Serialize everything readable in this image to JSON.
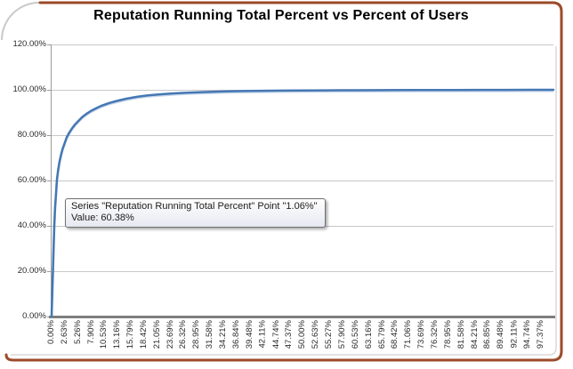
{
  "chart_data": {
    "type": "line",
    "title": "Reputation Running Total Percent vs Percent of Users",
    "series": [
      {
        "name": "Reputation Running Total Percent"
      }
    ],
    "legend": "none",
    "grid": "horizontal",
    "line_color": "#4577b3",
    "xlim": [
      0,
      100
    ],
    "ylim": [
      0,
      120
    ],
    "y_tick_labels": [
      "120.00%",
      "100.00%",
      "80.00%",
      "60.00%",
      "40.00%",
      "20.00%",
      "0.00%"
    ],
    "x_tick_labels": [
      "0.00%",
      "2.63%",
      "5.26%",
      "7.90%",
      "10.53%",
      "13.16%",
      "15.79%",
      "18.42%",
      "21.05%",
      "23.69%",
      "26.32%",
      "28.95%",
      "31.58%",
      "34.21%",
      "36.84%",
      "39.48%",
      "42.11%",
      "44.74%",
      "47.37%",
      "50.00%",
      "52.63%",
      "55.27%",
      "57.90%",
      "60.53%",
      "63.16%",
      "65.79%",
      "68.42%",
      "71.06%",
      "73.69%",
      "76.32%",
      "78.95%",
      "81.58%",
      "84.21%",
      "86.85%",
      "89.48%",
      "92.11%",
      "94.74%",
      "97.37%"
    ],
    "points": [
      [
        0,
        0
      ],
      [
        0.13,
        10
      ],
      [
        0.26,
        20
      ],
      [
        0.4,
        31
      ],
      [
        0.53,
        40
      ],
      [
        0.7,
        48
      ],
      [
        0.9,
        55
      ],
      [
        1.06,
        60.38
      ],
      [
        1.3,
        64.5
      ],
      [
        1.6,
        68.5
      ],
      [
        1.9,
        71.5
      ],
      [
        2.2,
        74
      ],
      [
        2.6,
        76.5
      ],
      [
        3,
        79
      ],
      [
        3.5,
        81
      ],
      [
        4,
        82.8
      ],
      [
        4.6,
        84.5
      ],
      [
        5.3,
        86.2
      ],
      [
        6.1,
        88
      ],
      [
        7,
        89.5
      ],
      [
        7.9,
        90.8
      ],
      [
        9,
        92
      ],
      [
        10,
        93
      ],
      [
        11.5,
        94.2
      ],
      [
        13,
        95.1
      ],
      [
        15,
        96.1
      ],
      [
        17,
        96.9
      ],
      [
        19,
        97.5
      ],
      [
        21,
        97.9
      ],
      [
        24,
        98.4
      ],
      [
        27,
        98.75
      ],
      [
        30,
        99
      ],
      [
        34,
        99.25
      ],
      [
        38,
        99.45
      ],
      [
        42,
        99.55
      ],
      [
        46,
        99.65
      ],
      [
        50,
        99.7
      ],
      [
        55,
        99.77
      ],
      [
        60,
        99.82
      ],
      [
        65,
        99.86
      ],
      [
        70,
        99.89
      ],
      [
        75,
        99.92
      ],
      [
        80,
        99.94
      ],
      [
        85,
        99.96
      ],
      [
        90,
        99.98
      ],
      [
        95,
        99.99
      ],
      [
        100,
        100
      ]
    ]
  },
  "tooltip": {
    "line1": "Series \"Reputation Running Total Percent\" Point \"1.06%\"",
    "line2": "Value: 60.38%"
  },
  "frame": {
    "border_color": "#9c4a29",
    "corner_arc_color": "#c9c9c9",
    "chart_edge_color": "#d8d8d8"
  }
}
